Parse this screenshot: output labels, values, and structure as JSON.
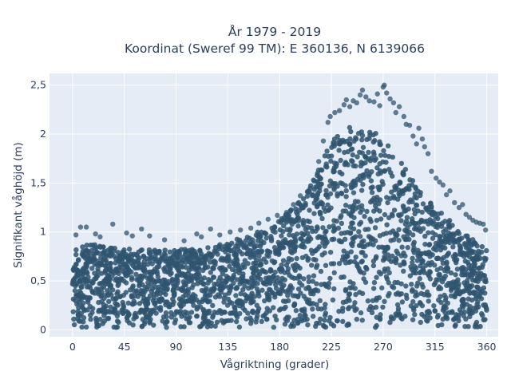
{
  "chart_data": {
    "type": "scatter",
    "title": "År 1979 - 2019",
    "subtitle": "Koordinat (Sweref 99 TM): E 360136, N 6139066",
    "xlabel": "Vågriktning (grader)",
    "ylabel": "Signifikant våghöjd (m)",
    "xlim": [
      -20,
      370
    ],
    "ylim": [
      -0.07,
      2.62
    ],
    "x_ticks": [
      0,
      45,
      90,
      135,
      180,
      225,
      270,
      315,
      360
    ],
    "x_tick_labels": [
      "0",
      "45",
      "90",
      "135",
      "180",
      "225",
      "270",
      "315",
      "360"
    ],
    "y_ticks": [
      0,
      0.5,
      1,
      1.5,
      2,
      2.5
    ],
    "y_tick_labels": [
      "0",
      "0,5",
      "1",
      "1,5",
      "2",
      "2,5"
    ],
    "grid": true,
    "background": "#e5ecf6",
    "marker_color": "#2f5570",
    "series": [
      {
        "mode": "dense_band",
        "band": [
          [
            0,
            0.02,
            0.85
          ],
          [
            10,
            0.02,
            0.86
          ],
          [
            20,
            0.02,
            0.88
          ],
          [
            30,
            0.02,
            0.86
          ],
          [
            45,
            0.02,
            0.83
          ],
          [
            60,
            0.02,
            0.82
          ],
          [
            75,
            0.02,
            0.82
          ],
          [
            90,
            0.02,
            0.82
          ],
          [
            105,
            0.02,
            0.83
          ],
          [
            120,
            0.02,
            0.86
          ],
          [
            135,
            0.02,
            0.9
          ],
          [
            150,
            0.02,
            0.95
          ],
          [
            165,
            0.02,
            1.02
          ],
          [
            180,
            0.02,
            1.12
          ],
          [
            195,
            0.02,
            1.28
          ],
          [
            205,
            0.02,
            1.45
          ],
          [
            215,
            0.02,
            1.7
          ],
          [
            225,
            0.02,
            1.92
          ],
          [
            235,
            0.02,
            2.05
          ],
          [
            245,
            0.02,
            2.08
          ],
          [
            255,
            0.02,
            2.05
          ],
          [
            265,
            0.02,
            2.0
          ],
          [
            275,
            0.02,
            1.88
          ],
          [
            285,
            0.02,
            1.72
          ],
          [
            295,
            0.02,
            1.55
          ],
          [
            305,
            0.02,
            1.38
          ],
          [
            315,
            0.02,
            1.25
          ],
          [
            325,
            0.02,
            1.15
          ],
          [
            335,
            0.02,
            1.05
          ],
          [
            345,
            0.02,
            0.95
          ],
          [
            355,
            0.02,
            0.88
          ],
          [
            360,
            0.02,
            0.85
          ]
        ],
        "outliers": [
          [
            7,
            1.05
          ],
          [
            12,
            1.05
          ],
          [
            3,
            0.97
          ],
          [
            20,
            0.98
          ],
          [
            24,
            0.95
          ],
          [
            35,
            1.08
          ],
          [
            47,
            0.99
          ],
          [
            52,
            0.96
          ],
          [
            60,
            1.03
          ],
          [
            67,
            0.96
          ],
          [
            80,
            0.92
          ],
          [
            97,
            0.91
          ],
          [
            108,
            0.98
          ],
          [
            112,
            0.95
          ],
          [
            120,
            1.03
          ],
          [
            128,
            0.97
          ],
          [
            137,
            1.0
          ],
          [
            146,
            1.02
          ],
          [
            155,
            1.04
          ],
          [
            162,
            1.09
          ],
          [
            170,
            1.13
          ],
          [
            178,
            1.17
          ],
          [
            186,
            1.2
          ],
          [
            192,
            1.28
          ],
          [
            198,
            1.37
          ],
          [
            205,
            1.42
          ],
          [
            210,
            1.52
          ],
          [
            214,
            1.72
          ],
          [
            218,
            1.93
          ],
          [
            222,
            2.12
          ],
          [
            224,
            2.18
          ],
          [
            228,
            2.22
          ],
          [
            232,
            2.24
          ],
          [
            236,
            2.3
          ],
          [
            238,
            2.35
          ],
          [
            241,
            2.28
          ],
          [
            244,
            2.34
          ],
          [
            247,
            2.32
          ],
          [
            250,
            2.4
          ],
          [
            252,
            2.45
          ],
          [
            255,
            2.38
          ],
          [
            258,
            2.34
          ],
          [
            262,
            2.33
          ],
          [
            265,
            2.41
          ],
          [
            267,
            2.29
          ],
          [
            270,
            2.48
          ],
          [
            271,
            2.5
          ],
          [
            273,
            2.42
          ],
          [
            276,
            2.36
          ],
          [
            279,
            2.32
          ],
          [
            281,
            2.22
          ],
          [
            284,
            2.28
          ],
          [
            288,
            2.18
          ],
          [
            290,
            2.1
          ],
          [
            293,
            2.09
          ],
          [
            296,
            1.98
          ],
          [
            299,
            1.9
          ],
          [
            301,
            2.06
          ],
          [
            304,
            1.95
          ],
          [
            306,
            1.87
          ],
          [
            309,
            1.8
          ],
          [
            312,
            1.62
          ],
          [
            316,
            1.55
          ],
          [
            319,
            1.51
          ],
          [
            322,
            1.48
          ],
          [
            325,
            1.38
          ],
          [
            328,
            1.42
          ],
          [
            332,
            1.3
          ],
          [
            336,
            1.25
          ],
          [
            339,
            1.28
          ],
          [
            342,
            1.18
          ],
          [
            345,
            1.15
          ],
          [
            348,
            1.12
          ],
          [
            351,
            1.1
          ],
          [
            354,
            1.09
          ],
          [
            357,
            1.08
          ],
          [
            359,
            1.02
          ]
        ]
      }
    ]
  }
}
